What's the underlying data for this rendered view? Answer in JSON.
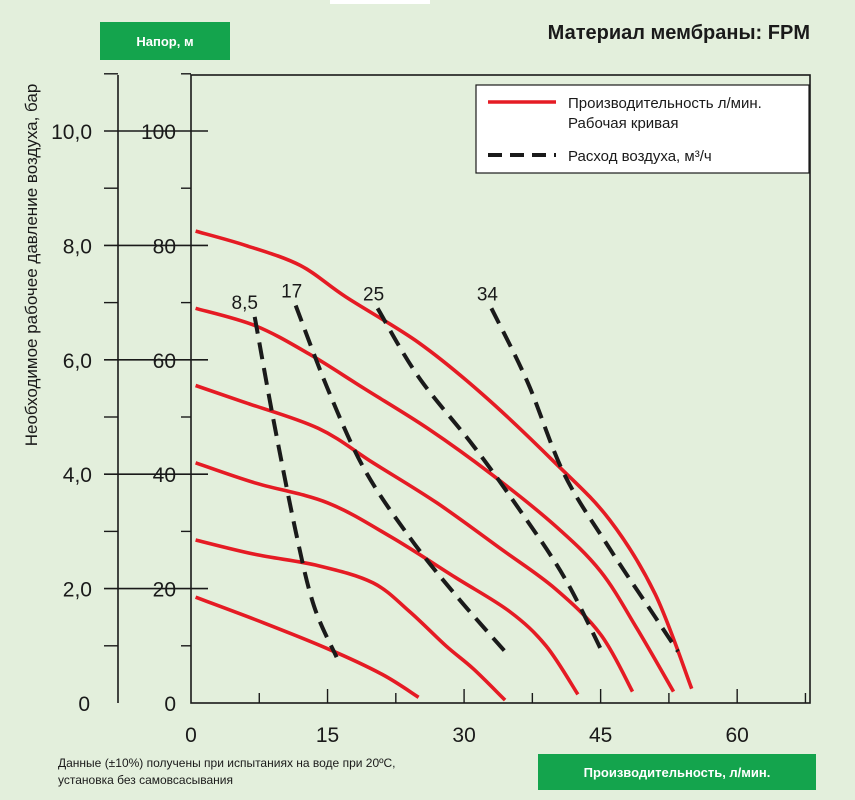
{
  "header": {
    "head_badge": "Напор, м",
    "title": "Материал мембраны: FPM"
  },
  "footer": {
    "note_line1": "Данные (±10%) получены при испытаниях на воде при 20ºC,",
    "note_line2": "установка без самовсасывания",
    "flow_badge": "Производительность, л/мин."
  },
  "colors": {
    "background": "#e3efdc",
    "badge": "#14a44d",
    "performance_curve": "#e51b24",
    "air_curve": "#1a1a1a"
  },
  "chart_data": {
    "type": "line",
    "title": "Материал мембраны: FPM",
    "xlabel": "Производительность, л/мин.",
    "ylabel": "Напор, м",
    "y2label": "Необходимое рабочее давление воздуха, бар",
    "xlim": [
      0,
      68
    ],
    "ylim": [
      0,
      112
    ],
    "x_ticks": [
      "0",
      "15",
      "30",
      "45",
      "60"
    ],
    "y_ticks": [
      "0",
      "20",
      "40",
      "60",
      "80",
      "100"
    ],
    "y2_ticks": [
      "0",
      "2,0",
      "4,0",
      "6,0",
      "8,0",
      "10,0"
    ],
    "grid": false,
    "legend_position": "top-right",
    "legend": [
      {
        "label_line1": "Производительность л/мин.",
        "label_line2": "Рабочая кривая",
        "style": "solid-red"
      },
      {
        "label_line1": "Расход воздуха, м³/ч",
        "label_line2": "",
        "style": "dashed-black"
      }
    ],
    "performance_curves": [
      {
        "points": [
          [
            0.5,
            82.5
          ],
          [
            6,
            80
          ],
          [
            12,
            76.5
          ],
          [
            17,
            71
          ],
          [
            25,
            63
          ],
          [
            32,
            54
          ],
          [
            40,
            42
          ],
          [
            46,
            32
          ],
          [
            51,
            19
          ],
          [
            55,
            2.5
          ]
        ]
      },
      {
        "points": [
          [
            0.5,
            69
          ],
          [
            7,
            66
          ],
          [
            13,
            61
          ],
          [
            19,
            55
          ],
          [
            26,
            48
          ],
          [
            33,
            40
          ],
          [
            40,
            31
          ],
          [
            45,
            23
          ],
          [
            49,
            13
          ],
          [
            53,
            2
          ]
        ]
      },
      {
        "points": [
          [
            0.5,
            55.5
          ],
          [
            6,
            52.5
          ],
          [
            14,
            48
          ],
          [
            20,
            42
          ],
          [
            27,
            35
          ],
          [
            34,
            27
          ],
          [
            40,
            20
          ],
          [
            45,
            12
          ],
          [
            48.5,
            2
          ]
        ]
      },
      {
        "points": [
          [
            0.5,
            42
          ],
          [
            7,
            38.5
          ],
          [
            15,
            35
          ],
          [
            22,
            29
          ],
          [
            29,
            22
          ],
          [
            35,
            16
          ],
          [
            39,
            10
          ],
          [
            42.5,
            1.5
          ]
        ]
      },
      {
        "points": [
          [
            0.5,
            28.5
          ],
          [
            7,
            26
          ],
          [
            14,
            24
          ],
          [
            20,
            21
          ],
          [
            24,
            16
          ],
          [
            28,
            10
          ],
          [
            31,
            6
          ],
          [
            34.5,
            0.5
          ]
        ]
      },
      {
        "points": [
          [
            0.5,
            18.5
          ],
          [
            8,
            14
          ],
          [
            15,
            9.5
          ],
          [
            21,
            5
          ],
          [
            25,
            1
          ]
        ]
      }
    ],
    "air_curves": [
      {
        "label": "8,5",
        "points": [
          [
            7,
            67.5
          ],
          [
            9,
            50
          ],
          [
            11.5,
            30
          ],
          [
            13.5,
            17
          ],
          [
            16,
            8
          ]
        ]
      },
      {
        "label": "17",
        "points": [
          [
            11.5,
            69.5
          ],
          [
            15,
            55
          ],
          [
            19,
            41
          ],
          [
            24,
            29
          ],
          [
            29,
            19
          ],
          [
            34.5,
            9
          ]
        ]
      },
      {
        "label": "25",
        "points": [
          [
            20.5,
            69
          ],
          [
            25,
            57
          ],
          [
            31,
            45
          ],
          [
            36,
            34
          ],
          [
            41,
            22
          ],
          [
            45,
            9.5
          ]
        ]
      },
      {
        "label": "34",
        "points": [
          [
            33,
            69
          ],
          [
            37,
            56
          ],
          [
            41,
            40
          ],
          [
            46,
            27
          ],
          [
            51,
            15
          ],
          [
            53.5,
            9
          ]
        ]
      }
    ]
  }
}
